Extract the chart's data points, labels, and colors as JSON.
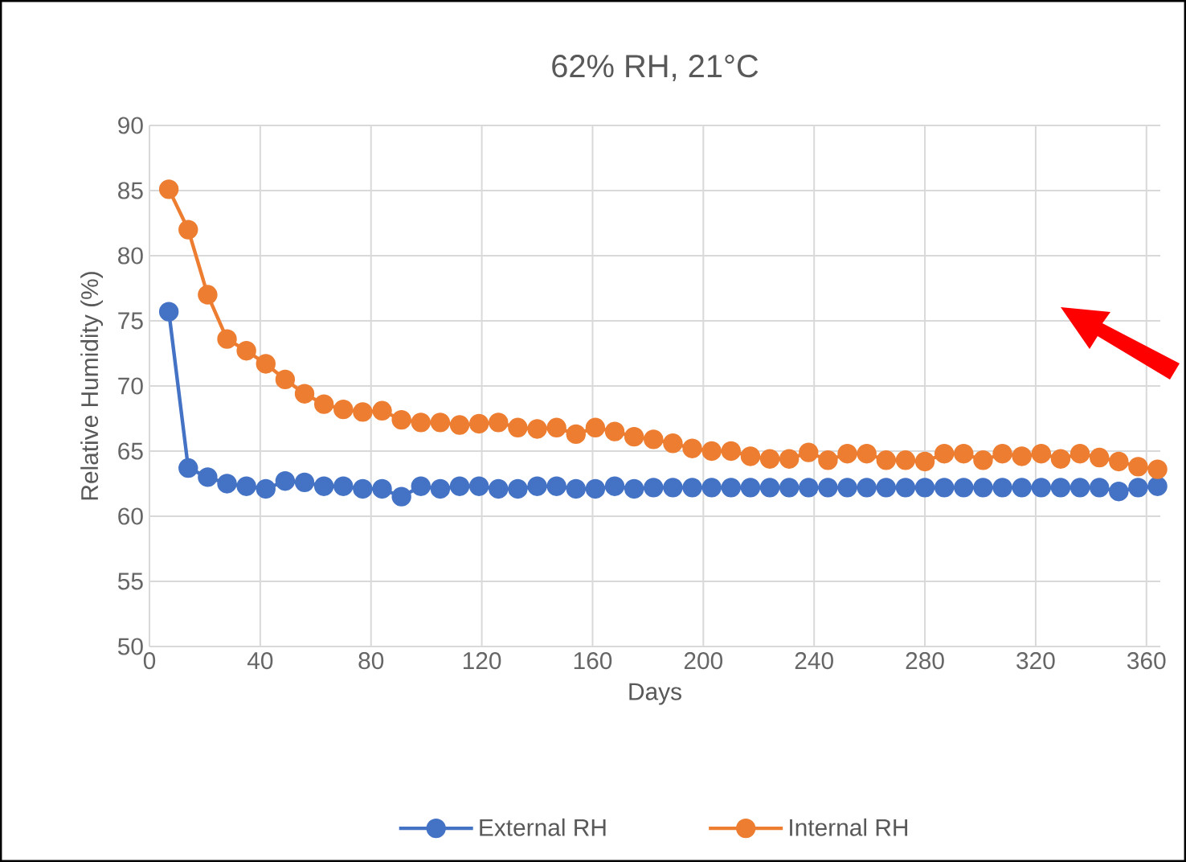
{
  "chart_data": {
    "type": "line",
    "title": "62% RH, 21°C",
    "xlabel": "Days",
    "ylabel": "Relative Humidity (%)",
    "x": [
      7,
      14,
      21,
      28,
      35,
      42,
      49,
      56,
      63,
      70,
      77,
      84,
      91,
      98,
      105,
      112,
      119,
      126,
      133,
      140,
      147,
      154,
      161,
      168,
      175,
      182,
      189,
      196,
      203,
      210,
      217,
      224,
      231,
      238,
      245,
      252,
      259,
      266,
      273,
      280,
      287,
      294,
      301,
      308,
      315,
      322,
      329,
      336,
      343,
      350,
      357,
      364
    ],
    "series": [
      {
        "name": "External RH",
        "color": "#4472c4",
        "values": [
          75.7,
          63.7,
          63.0,
          62.5,
          62.3,
          62.1,
          62.7,
          62.6,
          62.3,
          62.3,
          62.1,
          62.1,
          61.5,
          62.3,
          62.1,
          62.3,
          62.3,
          62.1,
          62.1,
          62.3,
          62.3,
          62.1,
          62.1,
          62.3,
          62.1,
          62.2,
          62.2,
          62.2,
          62.2,
          62.2,
          62.2,
          62.2,
          62.2,
          62.2,
          62.2,
          62.2,
          62.2,
          62.2,
          62.2,
          62.2,
          62.2,
          62.2,
          62.2,
          62.2,
          62.2,
          62.2,
          62.2,
          62.2,
          62.2,
          61.9,
          62.2,
          62.3
        ]
      },
      {
        "name": "Internal RH",
        "color": "#ed7d31",
        "values": [
          85.1,
          82.0,
          77.0,
          73.6,
          72.7,
          71.7,
          70.5,
          69.4,
          68.6,
          68.2,
          68.0,
          68.1,
          67.4,
          67.2,
          67.2,
          67.0,
          67.1,
          67.2,
          66.8,
          66.7,
          66.8,
          66.3,
          66.8,
          66.5,
          66.1,
          65.9,
          65.6,
          65.2,
          65.0,
          65.0,
          64.6,
          64.4,
          64.4,
          64.9,
          64.3,
          64.8,
          64.8,
          64.3,
          64.3,
          64.2,
          64.8,
          64.8,
          64.3,
          64.8,
          64.6,
          64.8,
          64.4,
          64.8,
          64.5,
          64.2,
          63.8,
          63.6
        ]
      }
    ],
    "xlim": [
      0,
      365
    ],
    "ylim": [
      50,
      90
    ],
    "xticks": [
      0,
      40,
      80,
      120,
      160,
      200,
      240,
      280,
      320,
      360
    ],
    "yticks": [
      50,
      55,
      60,
      65,
      70,
      75,
      80,
      85,
      90
    ],
    "grid": true,
    "legend": "bottom",
    "marker": "circle",
    "line_style": "solid"
  }
}
